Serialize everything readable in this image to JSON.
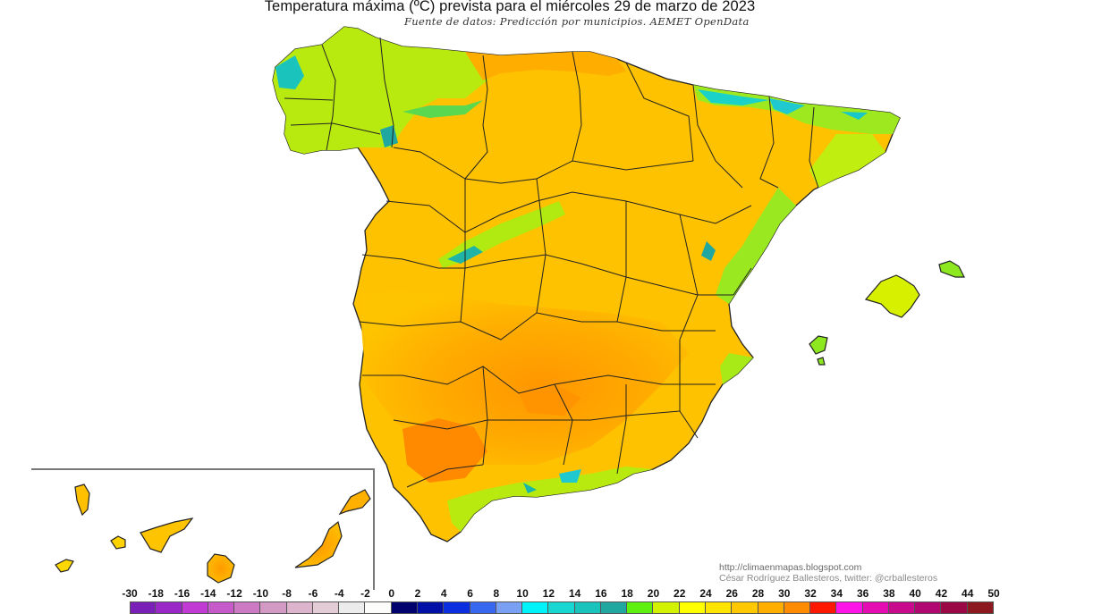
{
  "header": {
    "title": "Temperatura máxima (ºC) prevista para el miércoles 29 de marzo de 2023",
    "subtitle": "Fuente de datos: Predicción por municipios. AEMET OpenData"
  },
  "credits": {
    "url": "http://climaenmapas.blogspot.com",
    "author": "César Rodríguez Ballesteros, twitter: @crballesteros"
  },
  "legend": {
    "unit": "ºC",
    "labels": [
      "-30",
      "-18",
      "-16",
      "-14",
      "-12",
      "-10",
      "-8",
      "-6",
      "-4",
      "-2",
      "0",
      "2",
      "4",
      "6",
      "8",
      "10",
      "12",
      "14",
      "16",
      "18",
      "20",
      "22",
      "24",
      "26",
      "28",
      "30",
      "32",
      "34",
      "36",
      "38",
      "40",
      "42",
      "44",
      "50"
    ],
    "colors": [
      "#7a1fb8",
      "#9a28c8",
      "#c23ad4",
      "#c65ac8",
      "#cc7ac4",
      "#d49ac6",
      "#dcb4cc",
      "#e4ccd6",
      "#ececec",
      "#fcfcfa",
      "#00006e",
      "#0010a6",
      "#0a2ee0",
      "#3868f0",
      "#7aa0f4",
      "#00f2fa",
      "#18d6d0",
      "#1ac4bc",
      "#20a8a0",
      "#5ef010",
      "#d2f200",
      "#ffff00",
      "#ffe400",
      "#ffc800",
      "#ffae00",
      "#ff8c00",
      "#ff1800",
      "#ff14e8",
      "#e60cb4",
      "#c80a8c",
      "#b00870",
      "#9a0846",
      "#8c1820"
    ]
  },
  "map": {
    "region": "Península Ibérica (España), Baleares y Canarias",
    "variable": "Temperatura máxima prevista",
    "dominant_range": "20–30 ºC",
    "warmest_area": "Valle del Guadalquivir (Sevilla/Córdoba) ~28–30 ºC",
    "coolest_areas": [
      "Pirineos ~14–18 ºC",
      "Galicia occidental ~16–18 ºC",
      "Sierra Nevada ~14–16 ºC",
      "Sistema Central ~16–18 ºC"
    ],
    "insets": [
      "Islas Canarias"
    ]
  }
}
